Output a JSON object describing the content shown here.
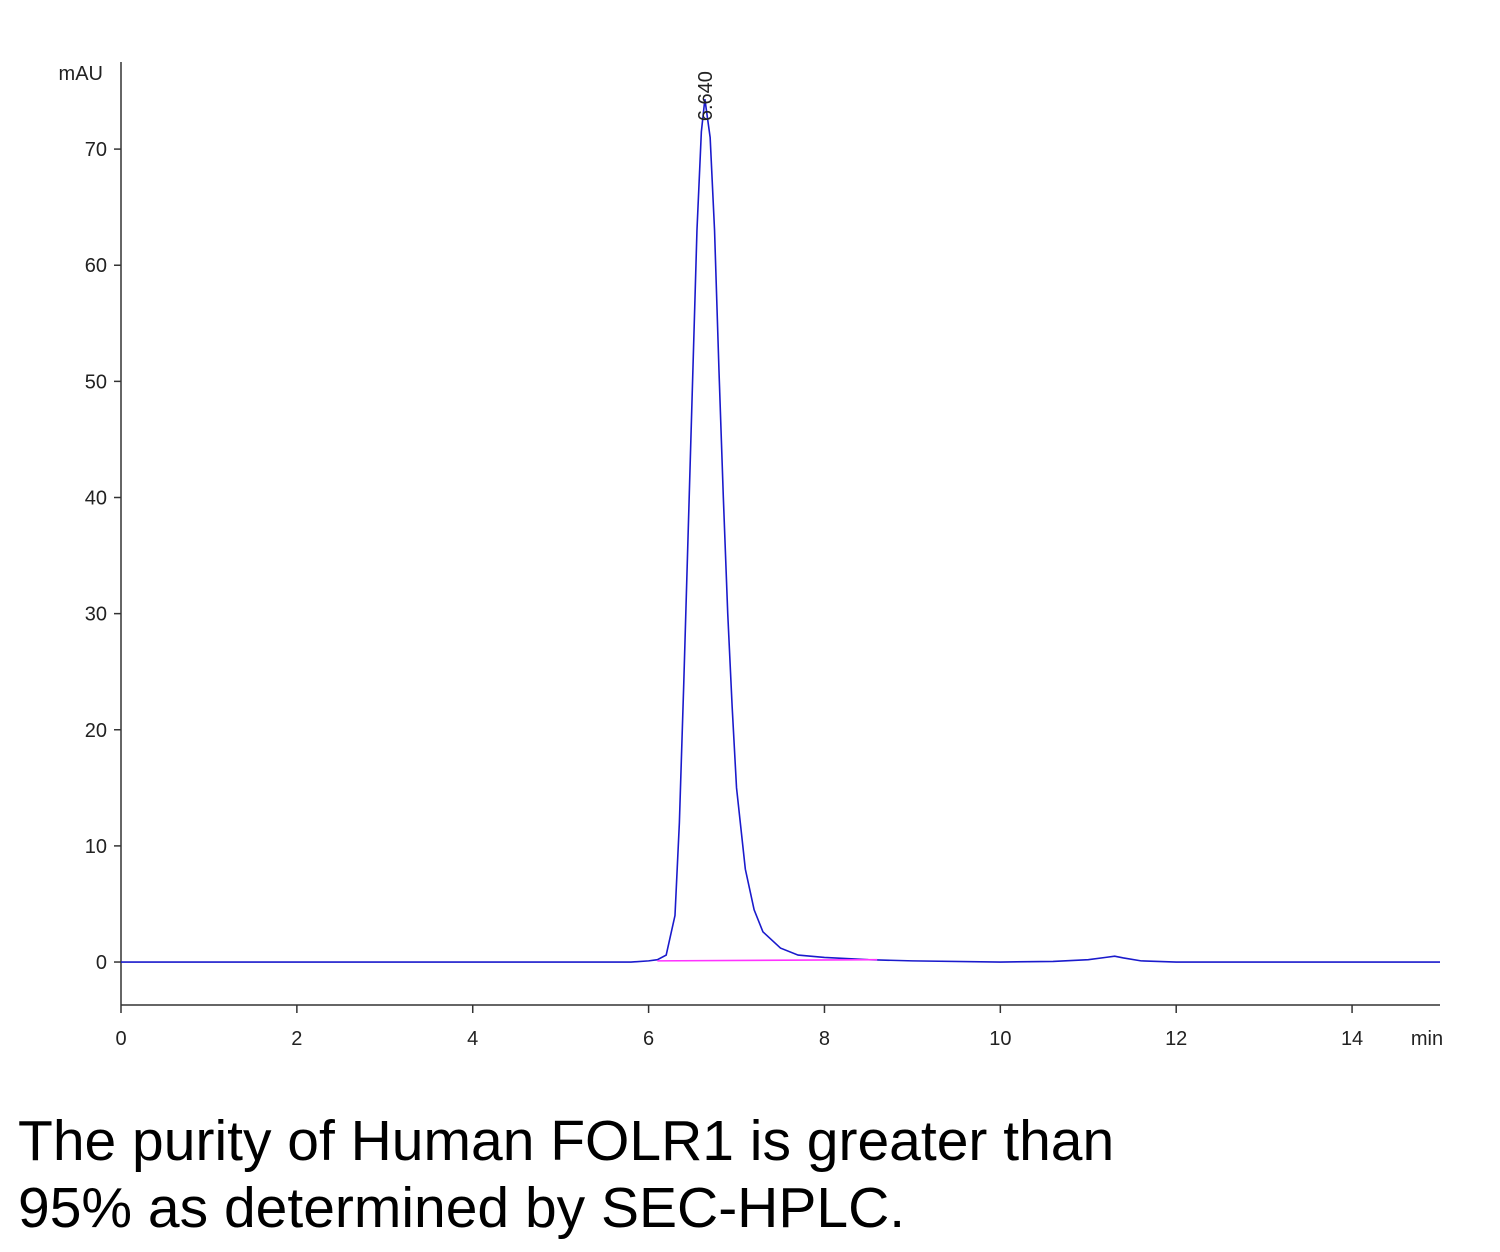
{
  "chart_data": {
    "type": "line",
    "y_label": "mAU",
    "x_label": "min",
    "xlim": [
      0,
      15
    ],
    "xticks": [
      0,
      2,
      4,
      6,
      8,
      10,
      12,
      14
    ],
    "ylim": [
      -3.7,
      77.5
    ],
    "yticks": [
      0,
      10,
      20,
      30,
      40,
      50,
      60,
      70
    ],
    "series": [
      {
        "color": "#1a1acc",
        "x": [
          0,
          1,
          2,
          3,
          4,
          5,
          5.8,
          6.0,
          6.1,
          6.2,
          6.3,
          6.35,
          6.4,
          6.45,
          6.5,
          6.55,
          6.6,
          6.64,
          6.7,
          6.75,
          6.8,
          6.85,
          6.9,
          6.95,
          7.0,
          7.1,
          7.2,
          7.3,
          7.5,
          7.7,
          8.0,
          8.5,
          9,
          10,
          10.6,
          11.0,
          11.2,
          11.3,
          11.4,
          11.6,
          12,
          13,
          14,
          15
        ],
        "values": [
          0,
          0,
          0,
          0,
          0,
          0,
          0,
          0.1,
          0.2,
          0.6,
          4,
          12,
          24,
          37,
          50,
          63,
          71.5,
          74.3,
          71,
          63,
          51,
          40,
          30,
          22,
          15,
          8,
          4.5,
          2.6,
          1.2,
          0.6,
          0.4,
          0.2,
          0.1,
          0,
          0.05,
          0.2,
          0.4,
          0.5,
          0.35,
          0.1,
          0,
          0,
          0,
          0
        ]
      },
      {
        "color": "#ff33ff",
        "x": [
          6.1,
          8.6
        ],
        "values": [
          0.1,
          0.2
        ]
      }
    ],
    "annotations": [
      {
        "text": "6.640",
        "x": 6.64,
        "y": 74.3
      }
    ]
  },
  "caption": [
    "The purity of Human FOLR1 is greater than",
    "95% as determined by SEC-HPLC."
  ]
}
